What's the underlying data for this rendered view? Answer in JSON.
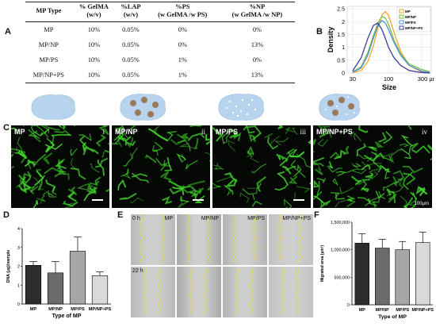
{
  "panel_labels": {
    "a": "A",
    "b": "B",
    "c": "C",
    "d": "D",
    "e": "E",
    "f": "F"
  },
  "table": {
    "headers": [
      {
        "line1": "MP Type",
        "line2": ""
      },
      {
        "line1": "% GelMA",
        "line2": "(w/v)"
      },
      {
        "line1": "%LAP",
        "line2": "(w/v)"
      },
      {
        "line1": "%PS",
        "line2": "(w GelMA /w PS)"
      },
      {
        "line1": "%NP",
        "line2": "(w GelMA /w NP)"
      }
    ],
    "rows": [
      [
        "MP",
        "10%",
        "0.05%",
        "0%",
        "0%"
      ],
      [
        "MP/NP",
        "10%",
        "0.05%",
        "0%",
        "13%"
      ],
      [
        "MP/PS",
        "10%",
        "0.05%",
        "1%",
        "0%"
      ],
      [
        "MP/NP+PS",
        "10%",
        "0.05%",
        "1%",
        "13%"
      ]
    ]
  },
  "micrographs": [
    {
      "label": "MP",
      "index": "i"
    },
    {
      "label": "MP/NP",
      "index": "ii"
    },
    {
      "label": "MP/PS",
      "index": "iii"
    },
    {
      "label": "MP/NP+PS",
      "index": "iv",
      "scale": "100μm"
    }
  ],
  "scratch": {
    "time_labels": [
      "0 h",
      "22 h"
    ],
    "conditions": [
      "MP",
      "MP/NP",
      "MP/PS",
      "MP/NP+PS"
    ]
  },
  "colors": {
    "bar1": "#2d2d2d",
    "bar2": "#6b6b6b",
    "bar3": "#a6a6a6",
    "bar4": "#d9d9d9",
    "fluor": "#3fcf2a",
    "mp_fill": "#b7d3ee",
    "np_dot": "#9b7a5b"
  },
  "chart_data": [
    {
      "id": "B",
      "type": "line",
      "xlabel": "Size",
      "ylabel": "Density",
      "x_scale": "log",
      "xlim": [
        25,
        420
      ],
      "ylim": [
        0,
        2.6
      ],
      "x_ticks": [
        30,
        100,
        300
      ],
      "x_tick_labels": [
        "30",
        "100",
        "300 µm"
      ],
      "y_ticks": [
        0,
        0.5,
        1,
        1.5,
        2,
        2.5
      ],
      "y_tick_labels": [
        "0",
        "0.5",
        "1",
        "1.5",
        "2",
        "2.5"
      ],
      "grid": true,
      "legend_position": "top-right",
      "series": [
        {
          "name": "MP",
          "color": "#f4a32c",
          "x": [
            30,
            40,
            50,
            60,
            70,
            80,
            90,
            100,
            120,
            150,
            200,
            300,
            400
          ],
          "y": [
            0.02,
            0.1,
            0.45,
            1.05,
            1.75,
            2.25,
            2.4,
            2.25,
            1.6,
            0.85,
            0.3,
            0.05,
            0.01
          ]
        },
        {
          "name": "MP/NP",
          "color": "#79c443",
          "x": [
            30,
            40,
            50,
            60,
            70,
            80,
            90,
            100,
            120,
            150,
            200,
            300,
            400
          ],
          "y": [
            0.04,
            0.25,
            0.8,
            1.45,
            1.95,
            2.2,
            2.15,
            1.9,
            1.3,
            0.75,
            0.35,
            0.15,
            0.05
          ]
        },
        {
          "name": "MP/PS",
          "color": "#4c8fd6",
          "x": [
            30,
            40,
            50,
            60,
            70,
            80,
            90,
            100,
            120,
            150,
            200,
            300,
            400
          ],
          "y": [
            0.03,
            0.2,
            0.7,
            1.35,
            1.85,
            2.05,
            1.95,
            1.7,
            1.2,
            0.7,
            0.3,
            0.08,
            0.02
          ]
        },
        {
          "name": "MP/NP+PS",
          "color": "#3a3f9a",
          "x": [
            30,
            40,
            50,
            60,
            70,
            80,
            90,
            100,
            120,
            150,
            200,
            300,
            400
          ],
          "y": [
            0.08,
            0.6,
            1.35,
            1.85,
            1.95,
            1.7,
            1.35,
            1.0,
            0.6,
            0.3,
            0.1,
            0.02,
            0.0
          ]
        }
      ]
    },
    {
      "id": "D",
      "type": "bar",
      "xlabel": "Type of MP",
      "ylabel": "DNA (µg)/sample",
      "ylim": [
        0,
        4
      ],
      "y_ticks": [
        0,
        1,
        2,
        3,
        4
      ],
      "y_tick_labels": [
        "0",
        "1",
        "2",
        "3",
        "4"
      ],
      "categories": [
        "MP",
        "MP/NP",
        "MP/PS",
        "MP/NP+PS"
      ],
      "values": [
        2.05,
        1.65,
        2.8,
        1.5
      ],
      "errors": [
        0.2,
        0.6,
        0.75,
        0.2
      ]
    },
    {
      "id": "F",
      "type": "bar",
      "xlabel": "Type of MP",
      "ylabel": "Migrated area (µm²)",
      "ylim": [
        0,
        1500000
      ],
      "y_ticks": [
        0,
        500000,
        1000000,
        1500000
      ],
      "y_tick_labels": [
        "0",
        "500,000",
        "1,000,000",
        "1,500,000"
      ],
      "categories": [
        "MP",
        "MP/NP",
        "MP/PS",
        "MP/NP+PS"
      ],
      "values": [
        1120000,
        1030000,
        1000000,
        1130000
      ],
      "errors": [
        170000,
        160000,
        150000,
        190000
      ]
    }
  ]
}
